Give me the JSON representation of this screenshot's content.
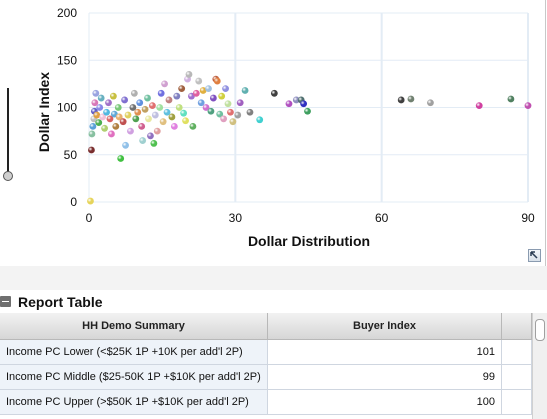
{
  "chart_data": {
    "type": "scatter",
    "xlabel": "Dollar Distribution",
    "ylabel": "Dollar Index",
    "xlim": [
      0,
      90
    ],
    "ylim": [
      0,
      200
    ],
    "x_ticks": [
      "0",
      "30",
      "60",
      "90"
    ],
    "y_ticks": [
      "0",
      "50",
      "100",
      "150",
      "200"
    ],
    "grid": true,
    "points": [
      {
        "x": 0.3,
        "y": 1,
        "color": "#e6d45a"
      },
      {
        "x": 0.5,
        "y": 55,
        "color": "#7a2e2e"
      },
      {
        "x": 0.6,
        "y": 72,
        "color": "#88c0a0"
      },
      {
        "x": 0.8,
        "y": 80,
        "color": "#5aa0d8"
      },
      {
        "x": 1.0,
        "y": 88,
        "color": "#c0c0c0"
      },
      {
        "x": 1.1,
        "y": 96,
        "color": "#6060c8"
      },
      {
        "x": 1.2,
        "y": 105,
        "color": "#d878b8"
      },
      {
        "x": 1.4,
        "y": 115,
        "color": "#9aa4e0"
      },
      {
        "x": 1.6,
        "y": 92,
        "color": "#e0a040"
      },
      {
        "x": 2.0,
        "y": 84,
        "color": "#4caf50"
      },
      {
        "x": 2.2,
        "y": 100,
        "color": "#8888e8"
      },
      {
        "x": 2.5,
        "y": 110,
        "color": "#68b0c0"
      },
      {
        "x": 2.8,
        "y": 90,
        "color": "#f0c0d8"
      },
      {
        "x": 3.2,
        "y": 78,
        "color": "#b0d070"
      },
      {
        "x": 3.6,
        "y": 95,
        "color": "#50b8e0"
      },
      {
        "x": 4.0,
        "y": 105,
        "color": "#a070c8"
      },
      {
        "x": 4.3,
        "y": 88,
        "color": "#d86060"
      },
      {
        "x": 4.6,
        "y": 72,
        "color": "#e070c0"
      },
      {
        "x": 5.0,
        "y": 112,
        "color": "#c8c040"
      },
      {
        "x": 5.2,
        "y": 93,
        "color": "#60a8d8"
      },
      {
        "x": 5.5,
        "y": 80,
        "color": "#b08040"
      },
      {
        "x": 6.0,
        "y": 100,
        "color": "#78c878"
      },
      {
        "x": 6.2,
        "y": 90,
        "color": "#e8b070"
      },
      {
        "x": 6.5,
        "y": 46,
        "color": "#40c040"
      },
      {
        "x": 7.0,
        "y": 85,
        "color": "#c05050"
      },
      {
        "x": 7.3,
        "y": 108,
        "color": "#8070d0"
      },
      {
        "x": 7.5,
        "y": 60,
        "color": "#90c0e8"
      },
      {
        "x": 8.0,
        "y": 92,
        "color": "#e0d060"
      },
      {
        "x": 8.5,
        "y": 75,
        "color": "#d0a0e0"
      },
      {
        "x": 9.0,
        "y": 100,
        "color": "#707070"
      },
      {
        "x": 9.3,
        "y": 115,
        "color": "#b0b0b0"
      },
      {
        "x": 9.6,
        "y": 88,
        "color": "#50a050"
      },
      {
        "x": 10.0,
        "y": 95,
        "color": "#e09050"
      },
      {
        "x": 10.4,
        "y": 105,
        "color": "#6090e0"
      },
      {
        "x": 10.8,
        "y": 80,
        "color": "#d06090"
      },
      {
        "x": 11.0,
        "y": 65,
        "color": "#a0d0d0"
      },
      {
        "x": 11.5,
        "y": 98,
        "color": "#c0a060"
      },
      {
        "x": 12.0,
        "y": 110,
        "color": "#70c0a0"
      },
      {
        "x": 12.2,
        "y": 88,
        "color": "#e8e8a0"
      },
      {
        "x": 12.6,
        "y": 70,
        "color": "#9070c0"
      },
      {
        "x": 13.0,
        "y": 102,
        "color": "#e07070"
      },
      {
        "x": 13.3,
        "y": 62,
        "color": "#50c050"
      },
      {
        "x": 13.6,
        "y": 92,
        "color": "#c0c0e0"
      },
      {
        "x": 14.0,
        "y": 75,
        "color": "#e0a0a0"
      },
      {
        "x": 14.5,
        "y": 100,
        "color": "#a0e0a0"
      },
      {
        "x": 14.8,
        "y": 115,
        "color": "#7070e0"
      },
      {
        "x": 15.2,
        "y": 85,
        "color": "#e0c080"
      },
      {
        "x": 15.5,
        "y": 125,
        "color": "#d0a0d0"
      },
      {
        "x": 16.0,
        "y": 95,
        "color": "#60c0e0"
      },
      {
        "x": 16.4,
        "y": 108,
        "color": "#c08080"
      },
      {
        "x": 17.0,
        "y": 90,
        "color": "#a0a040"
      },
      {
        "x": 17.5,
        "y": 80,
        "color": "#e080e0"
      },
      {
        "x": 18.0,
        "y": 112,
        "color": "#8080c0"
      },
      {
        "x": 18.5,
        "y": 100,
        "color": "#c0e080"
      },
      {
        "x": 19.0,
        "y": 120,
        "color": "#a06040"
      },
      {
        "x": 19.4,
        "y": 94,
        "color": "#60e0c0"
      },
      {
        "x": 19.8,
        "y": 86,
        "color": "#e0e060"
      },
      {
        "x": 20.2,
        "y": 130,
        "color": "#d0b0e0"
      },
      {
        "x": 20.5,
        "y": 135,
        "color": "#b8b8b8"
      },
      {
        "x": 21.0,
        "y": 112,
        "color": "#a070d0"
      },
      {
        "x": 21.3,
        "y": 80,
        "color": "#60b060"
      },
      {
        "x": 22.0,
        "y": 115,
        "color": "#e060a0"
      },
      {
        "x": 22.5,
        "y": 128,
        "color": "#c0c0c0"
      },
      {
        "x": 23.0,
        "y": 105,
        "color": "#70a0e0"
      },
      {
        "x": 23.4,
        "y": 118,
        "color": "#e0b040"
      },
      {
        "x": 24.0,
        "y": 100,
        "color": "#d070d0"
      },
      {
        "x": 24.5,
        "y": 120,
        "color": "#a0c0e0"
      },
      {
        "x": 25.0,
        "y": 96,
        "color": "#50a080"
      },
      {
        "x": 25.5,
        "y": 110,
        "color": "#8050c0"
      },
      {
        "x": 26.0,
        "y": 130,
        "color": "#c06040"
      },
      {
        "x": 26.3,
        "y": 128,
        "color": "#e08040"
      },
      {
        "x": 26.8,
        "y": 93,
        "color": "#70c0a0"
      },
      {
        "x": 27.2,
        "y": 112,
        "color": "#d0d040"
      },
      {
        "x": 27.6,
        "y": 88,
        "color": "#e0a0c0"
      },
      {
        "x": 28.0,
        "y": 120,
        "color": "#9090e0"
      },
      {
        "x": 28.5,
        "y": 104,
        "color": "#c0e0a0"
      },
      {
        "x": 29.0,
        "y": 95,
        "color": "#e07070"
      },
      {
        "x": 29.5,
        "y": 85,
        "color": "#d0c080"
      },
      {
        "x": 30.5,
        "y": 92,
        "color": "#a0a0a0"
      },
      {
        "x": 31.0,
        "y": 105,
        "color": "#a060c0"
      },
      {
        "x": 32.0,
        "y": 118,
        "color": "#60b0b0"
      },
      {
        "x": 33.0,
        "y": 95,
        "color": "#808080"
      },
      {
        "x": 35.0,
        "y": 87,
        "color": "#40d0d0"
      },
      {
        "x": 38.0,
        "y": 115,
        "color": "#404040"
      },
      {
        "x": 41.0,
        "y": 104,
        "color": "#b050c0"
      },
      {
        "x": 42.5,
        "y": 108,
        "color": "#9090c0"
      },
      {
        "x": 43.5,
        "y": 108,
        "color": "#507070"
      },
      {
        "x": 44.0,
        "y": 104,
        "color": "#3030c0"
      },
      {
        "x": 44.8,
        "y": 96,
        "color": "#40a060"
      },
      {
        "x": 64.0,
        "y": 108,
        "color": "#404040"
      },
      {
        "x": 66.0,
        "y": 109,
        "color": "#708070"
      },
      {
        "x": 70.0,
        "y": 105,
        "color": "#a0a0a0"
      },
      {
        "x": 80.0,
        "y": 102,
        "color": "#d040a0"
      },
      {
        "x": 86.5,
        "y": 109,
        "color": "#508060"
      },
      {
        "x": 90.0,
        "y": 102,
        "color": "#c050b0"
      }
    ]
  },
  "report": {
    "title": "Report Table",
    "columns": [
      "HH Demo Summary",
      "Buyer Index"
    ],
    "rows": [
      {
        "label": "Income PC Lower (<$25K 1P +10K per add'l 2P)",
        "value": "101"
      },
      {
        "label": "Income PC Middle ($25-50K 1P +$10K per add'l 2P)",
        "value": "99"
      },
      {
        "label": "Income PC Upper (>$50K 1P +$10K per add'l 2P)",
        "value": "100"
      }
    ]
  }
}
